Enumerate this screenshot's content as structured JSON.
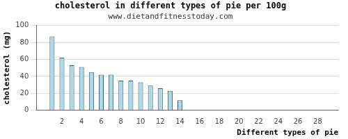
{
  "chart_data": {
    "type": "bar",
    "title": "cholesterol in different types of pie per 100g",
    "subtitle": "www.dietandfitnesstoday.com",
    "x_label": "Different types of pie",
    "y_label": "cholesterol (mg)",
    "x": [
      1,
      2,
      3,
      4,
      5,
      6,
      7,
      8,
      9,
      10,
      11,
      12,
      13,
      14
    ],
    "values": [
      87,
      62,
      53,
      51,
      45,
      42,
      42,
      35,
      35,
      33,
      29,
      26,
      23,
      12
    ],
    "color": "#add8e6",
    "xlim": [
      0.5,
      29
    ],
    "xticks": [
      2,
      4,
      6,
      8,
      10,
      12,
      14,
      16,
      18,
      20,
      22,
      24,
      26,
      28
    ],
    "ylim": [
      0,
      100
    ],
    "yticks": [
      0,
      20,
      40,
      60,
      80,
      100
    ],
    "grid": true
  }
}
